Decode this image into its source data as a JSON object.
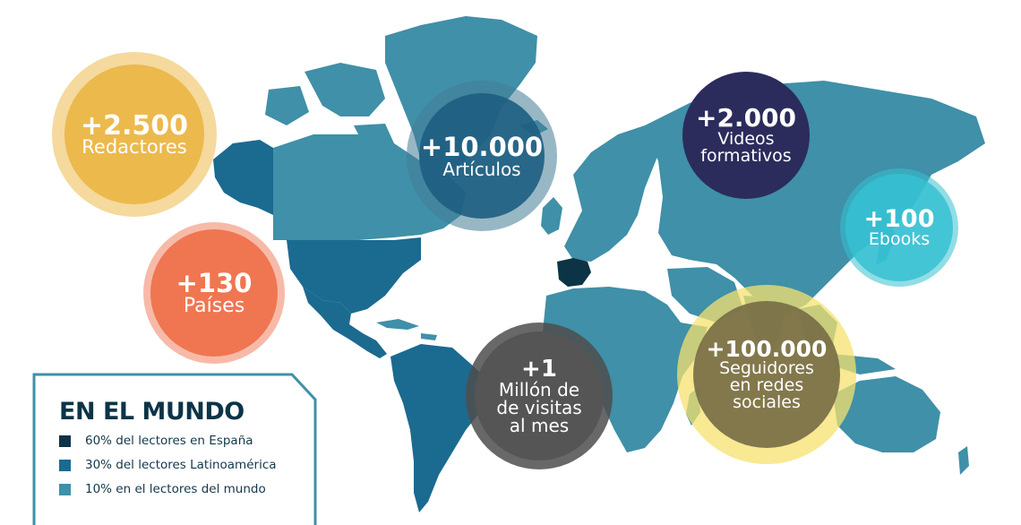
{
  "colors": {
    "spain": "#0c3346",
    "latam": "#1b6a90",
    "world": "#3f90a8",
    "background": "#ffffff"
  },
  "bubbles": {
    "redactores": {
      "number": "+2.500",
      "label": "Redactores",
      "color": "#ecb94c"
    },
    "articulos": {
      "number": "+10.000",
      "label": "Artículos",
      "color": "#1e5f82"
    },
    "videos": {
      "number": "+2.000",
      "label_line1": "Videos",
      "label_line2": "formativos",
      "color": "#2b2c5c"
    },
    "ebooks": {
      "number": "+100",
      "label": "Ebooks",
      "color": "#36c1d2"
    },
    "paises": {
      "number": "+130",
      "label": "Países",
      "color": "#ef7651"
    },
    "visitas": {
      "number": "+1",
      "label_line1": "Millón de",
      "label_line2": "de visitas",
      "label_line3": "al mes",
      "color": "#4d4d4d"
    },
    "seguidores": {
      "number": "+100.000",
      "label_line1": "Seguidores",
      "label_line2": "en redes",
      "label_line3": "sociales",
      "color": "#7b7247"
    }
  },
  "legend": {
    "title": "EN EL MUNDO",
    "items": [
      {
        "label": "60% del lectores en España",
        "color": "#0c3346"
      },
      {
        "label": "30% del lectores Latinoamérica",
        "color": "#1b6a90"
      },
      {
        "label": "10% en el lectores del mundo",
        "color": "#3f90a8"
      }
    ]
  }
}
